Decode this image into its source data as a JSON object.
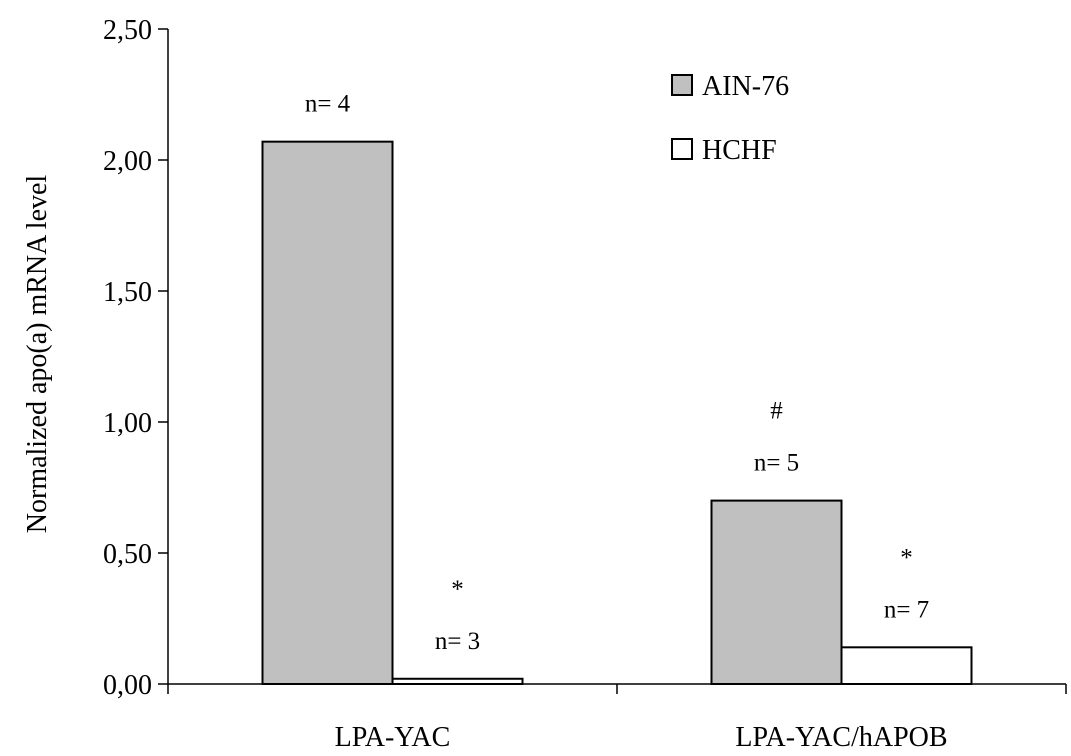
{
  "chart_data": {
    "type": "bar",
    "title": "",
    "xlabel": "",
    "ylabel": "Normalized apo(a) mRNA level",
    "categories": [
      "LPA-YAC",
      "LPA-YAC/hAPOB"
    ],
    "series": [
      {
        "name": "AIN-76",
        "values": [
          2.07,
          0.7
        ],
        "color": "#c0c0c0"
      },
      {
        "name": "HCHF",
        "values": [
          0.02,
          0.14
        ],
        "color": "#ffffff"
      }
    ],
    "ylim": [
      0,
      2.5
    ],
    "yticks": [
      "0,00",
      "0,50",
      "1,00",
      "1,50",
      "2,00",
      "2,50"
    ],
    "grid": false,
    "legend_position": "top-right",
    "annotations": [
      {
        "category": 0,
        "series": 0,
        "lines": [
          "n= 4"
        ]
      },
      {
        "category": 0,
        "series": 1,
        "lines": [
          "*",
          "n= 3"
        ]
      },
      {
        "category": 1,
        "series": 0,
        "lines": [
          "#",
          "n= 5"
        ]
      },
      {
        "category": 1,
        "series": 1,
        "lines": [
          "*",
          "n= 7"
        ]
      }
    ]
  }
}
